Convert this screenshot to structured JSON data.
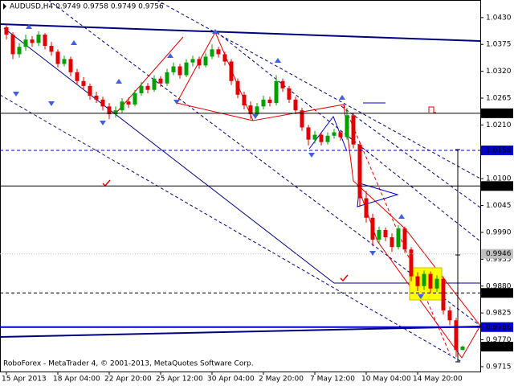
{
  "chart_data": {
    "type": "candlestick",
    "title": "AUDUSD,H4  0.9749 0.9758 0.9749 0.9756",
    "footer": "RoboForex - MetaTrader 4, © 2001-2013, MetaQuotes Software Corp.",
    "up_color": "#00a000",
    "down_color": "#e00000",
    "categories": [
      "15 Apr 2013",
      null,
      null,
      null,
      null,
      null,
      null,
      null,
      "18 Apr 04:00",
      null,
      null,
      null,
      null,
      null,
      null,
      null,
      "22 Apr 20:00",
      null,
      null,
      null,
      null,
      null,
      null,
      null,
      "25 Apr 12:00",
      null,
      null,
      null,
      null,
      null,
      null,
      null,
      "30 Apr 04:00",
      null,
      null,
      null,
      null,
      null,
      null,
      null,
      "2 May 20:00",
      null,
      null,
      null,
      null,
      null,
      null,
      null,
      "7 May 12:00",
      null,
      null,
      null,
      null,
      null,
      null,
      null,
      "10 May 04:00",
      null,
      null,
      null,
      null,
      null,
      null,
      null,
      "14 May 20:00",
      null,
      null,
      null,
      null,
      null,
      null,
      null
    ],
    "open": [
      1.041,
      1.0395,
      1.0355,
      1.037,
      1.0385,
      1.0378,
      1.0395,
      1.0372,
      1.036,
      1.0335,
      1.0345,
      1.0318,
      1.03,
      1.029,
      1.027,
      1.0262,
      1.0248,
      1.0232,
      1.024,
      1.0258,
      1.0252,
      1.0275,
      1.029,
      1.0282,
      1.0305,
      1.0295,
      1.0318,
      1.033,
      1.0312,
      1.0338,
      1.0345,
      1.0332,
      1.035,
      1.0365,
      1.0355,
      1.034,
      1.03,
      1.0272,
      1.025,
      1.0232,
      1.0248,
      1.0262,
      1.0255,
      1.03,
      1.0285,
      1.0262,
      1.024,
      1.0205,
      1.018,
      1.019,
      1.0175,
      1.0188,
      1.0195,
      1.0185,
      1.023,
      1.017,
      1.006,
      1.002,
      0.9975,
      0.9995,
      0.998,
      0.996,
      0.9998,
      0.9955,
      0.99,
      0.988,
      0.9905,
      0.9875,
      0.9895,
      0.983,
      0.981,
      0.9749
    ],
    "high": [
      1.0418,
      1.04,
      1.0378,
      1.0395,
      1.0392,
      1.0402,
      1.0398,
      1.038,
      1.0365,
      1.0352,
      1.035,
      1.0325,
      1.0308,
      1.0295,
      1.0278,
      1.0268,
      1.0255,
      1.0248,
      1.0265,
      1.0266,
      1.0282,
      1.0298,
      1.0296,
      1.0312,
      1.031,
      1.0325,
      1.0338,
      1.0335,
      1.0345,
      1.0352,
      1.035,
      1.0358,
      1.0375,
      1.037,
      1.036,
      1.0345,
      1.0305,
      1.0278,
      1.0258,
      1.0255,
      1.027,
      1.0268,
      1.0312,
      1.0305,
      1.029,
      1.0268,
      1.0245,
      1.021,
      1.0198,
      1.0195,
      1.0195,
      1.0202,
      1.02,
      1.0245,
      1.0235,
      1.0175,
      1.0075,
      1.0028,
      1.0002,
      1.0,
      0.9988,
      1.0005,
      1.0002,
      0.996,
      0.9908,
      0.9912,
      0.991,
      0.9902,
      0.99,
      0.9838,
      0.9815,
      0.9758
    ],
    "low": [
      1.0385,
      1.0345,
      1.0348,
      1.0362,
      1.037,
      1.0372,
      1.0365,
      1.0352,
      1.0328,
      1.033,
      1.031,
      1.0292,
      1.0282,
      1.0262,
      1.0255,
      1.024,
      1.0222,
      1.0225,
      1.0235,
      1.0245,
      1.0248,
      1.027,
      1.0275,
      1.0278,
      1.0288,
      1.029,
      1.0312,
      1.0305,
      1.0308,
      1.033,
      1.0325,
      1.0328,
      1.0345,
      1.0348,
      1.0332,
      1.0292,
      1.0265,
      1.0242,
      1.0222,
      1.0228,
      1.0242,
      1.0248,
      1.025,
      1.0278,
      1.0255,
      1.0232,
      1.0198,
      1.0168,
      1.0172,
      1.0168,
      1.017,
      1.0182,
      1.0178,
      1.018,
      1.0162,
      1.0042,
      1.001,
      0.9962,
      0.9968,
      0.9972,
      0.995,
      0.9955,
      0.9948,
      0.989,
      0.987,
      0.9872,
      0.9866,
      0.9868,
      0.9822,
      0.98,
      0.9735,
      0.9749
    ],
    "close": [
      1.0395,
      1.0355,
      1.037,
      1.0385,
      1.0378,
      1.0395,
      1.0372,
      1.036,
      1.0335,
      1.0345,
      1.0318,
      1.03,
      1.029,
      1.027,
      1.0262,
      1.0248,
      1.0232,
      1.024,
      1.0258,
      1.0252,
      1.0275,
      1.029,
      1.0282,
      1.0305,
      1.0295,
      1.0318,
      1.033,
      1.0312,
      1.0338,
      1.0345,
      1.0332,
      1.035,
      1.0365,
      1.0355,
      1.034,
      1.03,
      1.0272,
      1.025,
      1.0232,
      1.0248,
      1.0262,
      1.0255,
      1.03,
      1.0285,
      1.0262,
      1.024,
      1.0205,
      1.018,
      1.019,
      1.0175,
      1.0188,
      1.0195,
      1.0185,
      1.023,
      1.017,
      1.006,
      1.002,
      0.9975,
      0.9995,
      0.998,
      0.996,
      0.9998,
      0.9955,
      0.99,
      0.988,
      0.9905,
      0.9875,
      0.9895,
      0.983,
      0.981,
      0.9749,
      0.9756
    ],
    "ylim": [
      0.9705,
      1.0466
    ],
    "yticks": [
      {
        "value": 1.043,
        "label": "1.0430"
      },
      {
        "value": 1.0375,
        "label": "1.0375"
      },
      {
        "value": 1.032,
        "label": "1.0320"
      },
      {
        "value": 1.0265,
        "label": "1.0265"
      },
      {
        "value": 1.021,
        "label": "1.0210"
      },
      {
        "value": 1.0155,
        "label": "1.0155"
      },
      {
        "value": 1.01,
        "label": "1.0100"
      },
      {
        "value": 1.0045,
        "label": "1.0045"
      },
      {
        "value": 0.999,
        "label": "0.9990"
      },
      {
        "value": 0.9935,
        "label": "0.9935"
      },
      {
        "value": 0.988,
        "label": "0.9880"
      },
      {
        "value": 0.9825,
        "label": "0.9825"
      },
      {
        "value": 0.977,
        "label": "0.9770"
      },
      {
        "value": 0.9715,
        "label": "0.9715"
      }
    ],
    "levels": [
      {
        "value": 1.0234,
        "label": "1.0234",
        "color": "#000000",
        "line": "solid"
      },
      {
        "value": 1.0158,
        "label": "1.0158",
        "color": "#0000c8",
        "line": "dashed"
      },
      {
        "value": 1.0085,
        "label": "1.0085",
        "color": "#000000",
        "line": "solid"
      },
      {
        "value": 0.9946,
        "label": "0.9946",
        "color": "#c0c0c0",
        "line": "dotted"
      },
      {
        "value": 0.9866,
        "label": "0.9866",
        "color": "#000000",
        "line": "dashed"
      },
      {
        "value": 0.9796,
        "label": "0.9796",
        "color": "#0000c8",
        "line": "thick"
      },
      {
        "value": 0.9756,
        "label": "0.9756",
        "color": "#000000",
        "line": "none"
      }
    ]
  }
}
